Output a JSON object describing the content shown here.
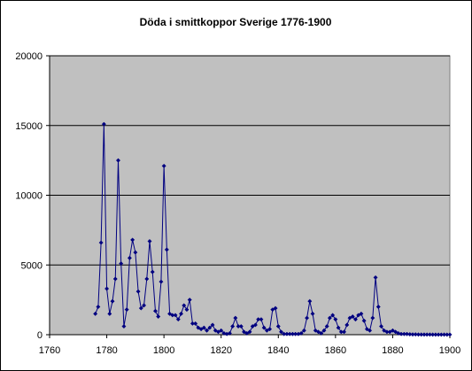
{
  "chart_data": {
    "type": "line",
    "title": "Döda i smittkoppor Sverige 1776-1900",
    "xlabel": "",
    "ylabel": "",
    "xlim": [
      1760,
      1900
    ],
    "ylim": [
      0,
      20000
    ],
    "xticks": [
      1760,
      1780,
      1800,
      1820,
      1840,
      1860,
      1880,
      1900
    ],
    "yticks": [
      0,
      5000,
      10000,
      15000,
      20000
    ],
    "grid": "horizontal",
    "legend": "none",
    "plot_background": "#c0c0c0",
    "series": [
      {
        "name": "",
        "color": "#000080",
        "marker": "diamond",
        "x": [
          1776,
          1777,
          1778,
          1779,
          1780,
          1781,
          1782,
          1783,
          1784,
          1785,
          1786,
          1787,
          1788,
          1789,
          1790,
          1791,
          1792,
          1793,
          1794,
          1795,
          1796,
          1797,
          1798,
          1799,
          1800,
          1801,
          1802,
          1803,
          1804,
          1805,
          1806,
          1807,
          1808,
          1809,
          1810,
          1811,
          1812,
          1813,
          1814,
          1815,
          1816,
          1817,
          1818,
          1819,
          1820,
          1821,
          1822,
          1823,
          1824,
          1825,
          1826,
          1827,
          1828,
          1829,
          1830,
          1831,
          1832,
          1833,
          1834,
          1835,
          1836,
          1837,
          1838,
          1839,
          1840,
          1841,
          1842,
          1843,
          1844,
          1845,
          1846,
          1847,
          1848,
          1849,
          1850,
          1851,
          1852,
          1853,
          1854,
          1855,
          1856,
          1857,
          1858,
          1859,
          1860,
          1861,
          1862,
          1863,
          1864,
          1865,
          1866,
          1867,
          1868,
          1869,
          1870,
          1871,
          1872,
          1873,
          1874,
          1875,
          1876,
          1877,
          1878,
          1879,
          1880,
          1881,
          1882,
          1883,
          1884,
          1885,
          1886,
          1887,
          1888,
          1889,
          1890,
          1891,
          1892,
          1893,
          1894,
          1895,
          1896,
          1897,
          1898,
          1899,
          1900
        ],
        "values": [
          1500,
          2000,
          6600,
          15100,
          3300,
          1500,
          2400,
          4000,
          12500,
          5100,
          600,
          1800,
          5500,
          6800,
          5900,
          3100,
          1900,
          2100,
          4000,
          6700,
          4500,
          1700,
          1300,
          3800,
          12100,
          6100,
          1500,
          1400,
          1400,
          1100,
          1500,
          2100,
          1800,
          2500,
          800,
          800,
          500,
          400,
          500,
          300,
          500,
          700,
          300,
          200,
          300,
          100,
          50,
          100,
          600,
          1200,
          600,
          600,
          200,
          100,
          200,
          600,
          700,
          1100,
          1100,
          500,
          300,
          400,
          1800,
          1900,
          600,
          200,
          50,
          50,
          50,
          50,
          50,
          50,
          100,
          300,
          1200,
          2400,
          1500,
          300,
          200,
          100,
          300,
          600,
          1200,
          1400,
          1100,
          500,
          200,
          200,
          700,
          1200,
          1300,
          1100,
          1400,
          1500,
          1000,
          400,
          300,
          1200,
          4100,
          2000,
          600,
          300,
          200,
          200,
          300,
          200,
          100,
          50,
          50,
          50,
          30,
          20,
          20,
          10,
          10,
          10,
          10,
          10,
          5,
          5,
          5,
          5,
          5,
          5,
          5
        ]
      }
    ]
  }
}
